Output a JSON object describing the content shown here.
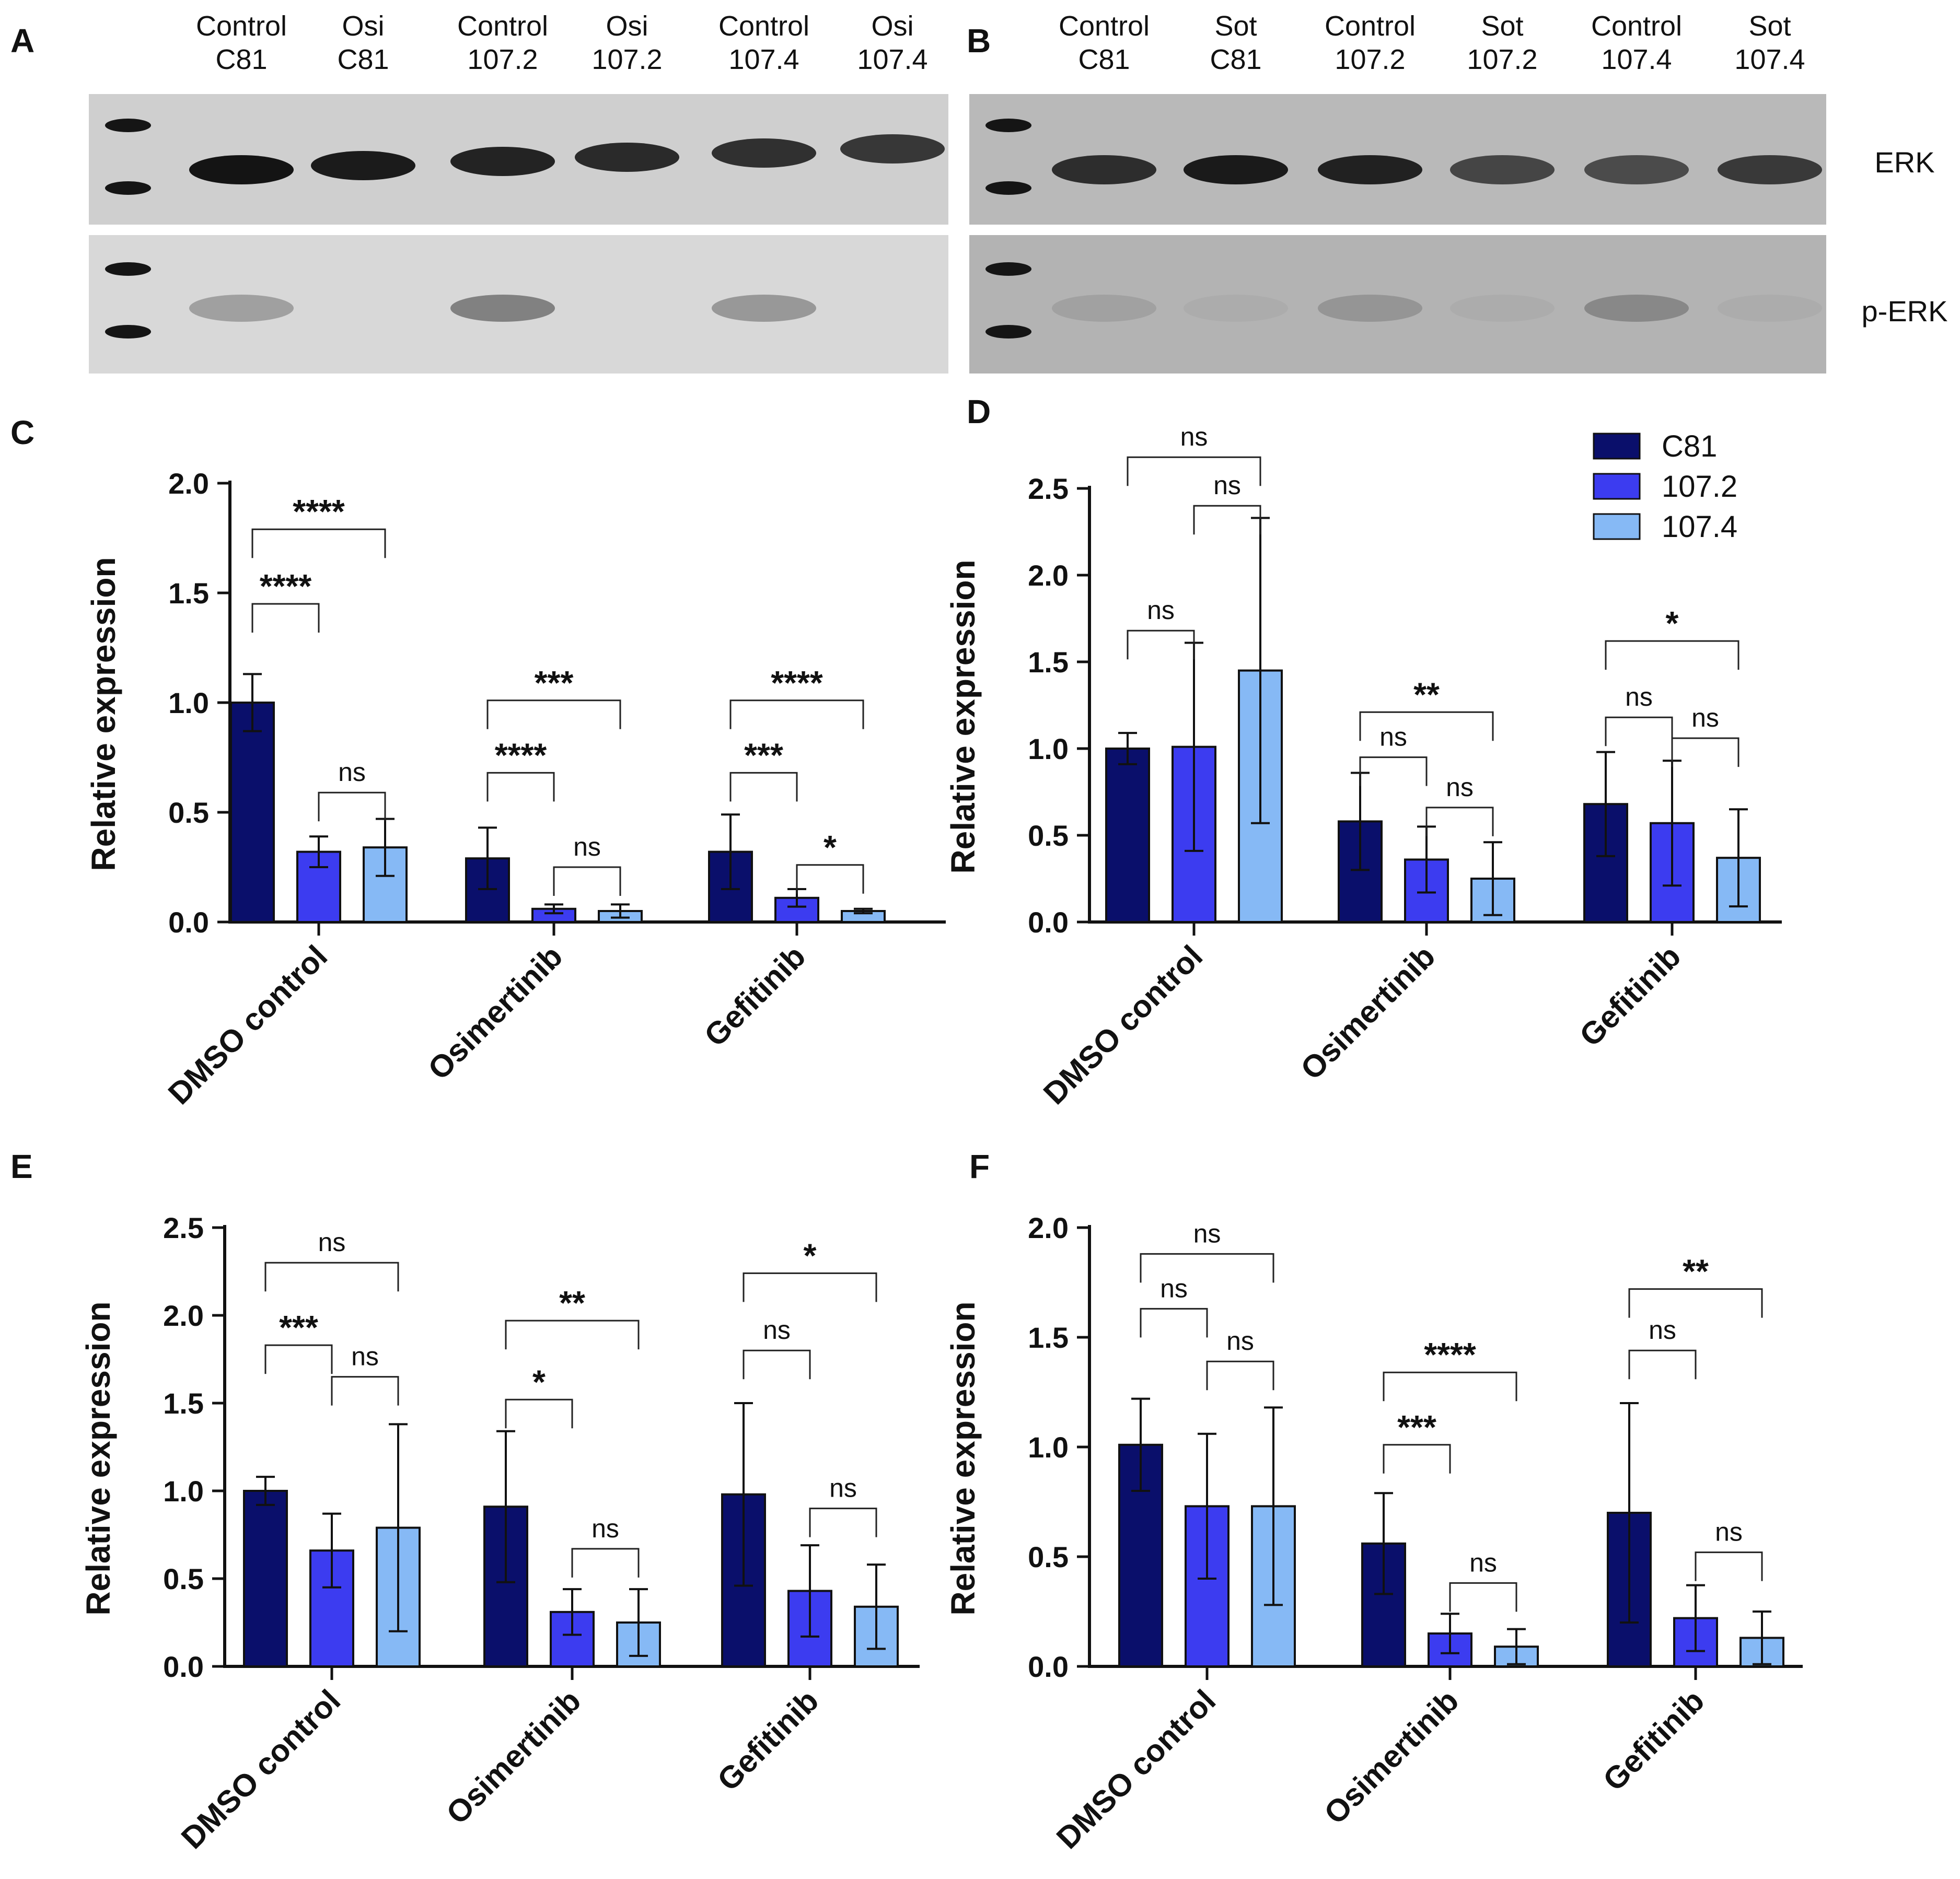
{
  "figure": {
    "colors": {
      "c81": "#0a0f6b",
      "c1072": "#3c3cf0",
      "c1074": "#86b9f5"
    },
    "legend": [
      {
        "label": "C81",
        "color": "#0a0f6b"
      },
      {
        "label": "107.2",
        "color": "#3c3cf0"
      },
      {
        "label": "107.4",
        "color": "#86b9f5"
      }
    ],
    "panel_letters": [
      "A",
      "B",
      "C",
      "D",
      "E",
      "F"
    ]
  },
  "blots": [
    {
      "letter": "A",
      "lanes": [
        {
          "top": "Control",
          "bottom": "C81"
        },
        {
          "top": "Osi",
          "bottom": "C81"
        },
        {
          "top": "Control",
          "bottom": "107.2"
        },
        {
          "top": "Osi",
          "bottom": "107.2"
        },
        {
          "top": "Control",
          "bottom": "107.4"
        },
        {
          "top": "Osi",
          "bottom": "107.4"
        }
      ],
      "erk_bands": [
        1.0,
        0.95,
        0.9,
        0.85,
        0.8,
        0.75
      ],
      "perk_bands": [
        0.35,
        0.0,
        0.55,
        0.0,
        0.4,
        0.0
      ]
    },
    {
      "letter": "B",
      "lanes": [
        {
          "top": "Control",
          "bottom": "C81"
        },
        {
          "top": "Sot",
          "bottom": "C81"
        },
        {
          "top": "Control",
          "bottom": "107.2"
        },
        {
          "top": "Sot",
          "bottom": "107.2"
        },
        {
          "top": "Control",
          "bottom": "107.4"
        },
        {
          "top": "Sot",
          "bottom": "107.4"
        }
      ],
      "erk_bands": [
        0.8,
        0.95,
        0.9,
        0.6,
        0.55,
        0.7
      ],
      "perk_bands": [
        0.15,
        0.05,
        0.25,
        0.05,
        0.35,
        0.05
      ]
    }
  ],
  "blot_labels": {
    "erk": "ERK",
    "perk": "p-ERK"
  },
  "chart_data": [
    {
      "letter": "C",
      "type": "bar",
      "ylabel": "Relative expression",
      "ylim": [
        0,
        2.0
      ],
      "yticks": [
        "0.0",
        "0.5",
        "1.0",
        "1.5",
        "2.0"
      ],
      "categories": [
        "DMSO control",
        "Osimertinib",
        "Gefitinib"
      ],
      "series": [
        {
          "name": "C81",
          "values": [
            1.0,
            0.29,
            0.32
          ],
          "errors": [
            0.13,
            0.14,
            0.17
          ]
        },
        {
          "name": "107.2",
          "values": [
            0.32,
            0.06,
            0.11
          ],
          "errors": [
            0.07,
            0.02,
            0.04
          ]
        },
        {
          "name": "107.4",
          "values": [
            0.34,
            0.05,
            0.05
          ],
          "errors": [
            0.13,
            0.03,
            0.01
          ]
        }
      ],
      "sig": [
        {
          "g": 0,
          "a": 0,
          "b": 1,
          "label": "****",
          "y": 1.45
        },
        {
          "g": 0,
          "a": 0,
          "b": 2,
          "label": "****",
          "y": 1.79
        },
        {
          "g": 0,
          "a": 1,
          "b": 2,
          "label": "ns",
          "y": 0.59
        },
        {
          "g": 1,
          "a": 0,
          "b": 1,
          "label": "****",
          "y": 0.68
        },
        {
          "g": 1,
          "a": 0,
          "b": 2,
          "label": "***",
          "y": 1.01
        },
        {
          "g": 1,
          "a": 1,
          "b": 2,
          "label": "ns",
          "y": 0.25
        },
        {
          "g": 2,
          "a": 0,
          "b": 1,
          "label": "***",
          "y": 0.68
        },
        {
          "g": 2,
          "a": 0,
          "b": 2,
          "label": "****",
          "y": 1.01
        },
        {
          "g": 2,
          "a": 1,
          "b": 2,
          "label": "*",
          "y": 0.26
        }
      ]
    },
    {
      "letter": "D",
      "type": "bar",
      "ylabel": "Relative expression",
      "ylim": [
        0,
        2.5
      ],
      "yticks": [
        "0.0",
        "0.5",
        "1.0",
        "1.5",
        "2.0",
        "2.5"
      ],
      "categories": [
        "DMSO control",
        "Osimertinib",
        "Gefitinib"
      ],
      "legend_position": "top-right",
      "series": [
        {
          "name": "C81",
          "values": [
            1.0,
            0.58,
            0.68
          ],
          "errors": [
            0.09,
            0.28,
            0.3
          ]
        },
        {
          "name": "107.2",
          "values": [
            1.01,
            0.36,
            0.57
          ],
          "errors": [
            0.6,
            0.19,
            0.36
          ]
        },
        {
          "name": "107.4",
          "values": [
            1.45,
            0.25,
            0.37
          ],
          "errors": [
            0.88,
            0.21,
            0.28
          ]
        }
      ],
      "sig": [
        {
          "g": 0,
          "a": 0,
          "b": 1,
          "label": "ns",
          "y": 1.68
        },
        {
          "g": 0,
          "a": 0,
          "b": 2,
          "label": "ns",
          "y": 2.68
        },
        {
          "g": 0,
          "a": 1,
          "b": 2,
          "label": "ns",
          "y": 2.4
        },
        {
          "g": 1,
          "a": 0,
          "b": 1,
          "label": "ns",
          "y": 0.95
        },
        {
          "g": 1,
          "a": 0,
          "b": 2,
          "label": "**",
          "y": 1.21
        },
        {
          "g": 1,
          "a": 1,
          "b": 2,
          "label": "ns",
          "y": 0.66
        },
        {
          "g": 2,
          "a": 0,
          "b": 1,
          "label": "ns",
          "y": 1.18
        },
        {
          "g": 2,
          "a": 0,
          "b": 2,
          "label": "*",
          "y": 1.62
        },
        {
          "g": 2,
          "a": 1,
          "b": 2,
          "label": "ns",
          "y": 1.06
        }
      ]
    },
    {
      "letter": "E",
      "type": "bar",
      "ylabel": "Relative expression",
      "ylim": [
        0,
        2.5
      ],
      "yticks": [
        "0.0",
        "0.5",
        "1.0",
        "1.5",
        "2.0",
        "2.5"
      ],
      "categories": [
        "DMSO control",
        "Osimertinib",
        "Gefitinib"
      ],
      "series": [
        {
          "name": "C81",
          "values": [
            1.0,
            0.91,
            0.98
          ],
          "errors": [
            0.08,
            0.43,
            0.52
          ]
        },
        {
          "name": "107.2",
          "values": [
            0.66,
            0.31,
            0.43
          ],
          "errors": [
            0.21,
            0.13,
            0.26
          ]
        },
        {
          "name": "107.4",
          "values": [
            0.79,
            0.25,
            0.34
          ],
          "errors": [
            0.59,
            0.19,
            0.24
          ]
        }
      ],
      "sig": [
        {
          "g": 0,
          "a": 0,
          "b": 1,
          "label": "***",
          "y": 1.83
        },
        {
          "g": 0,
          "a": 0,
          "b": 2,
          "label": "ns",
          "y": 2.3
        },
        {
          "g": 0,
          "a": 1,
          "b": 2,
          "label": "ns",
          "y": 1.65
        },
        {
          "g": 1,
          "a": 0,
          "b": 1,
          "label": "*",
          "y": 1.52
        },
        {
          "g": 1,
          "a": 0,
          "b": 2,
          "label": "**",
          "y": 1.97
        },
        {
          "g": 1,
          "a": 1,
          "b": 2,
          "label": "ns",
          "y": 0.67
        },
        {
          "g": 2,
          "a": 0,
          "b": 1,
          "label": "ns",
          "y": 1.8
        },
        {
          "g": 2,
          "a": 0,
          "b": 2,
          "label": "*",
          "y": 2.24
        },
        {
          "g": 2,
          "a": 1,
          "b": 2,
          "label": "ns",
          "y": 0.9
        }
      ]
    },
    {
      "letter": "F",
      "type": "bar",
      "ylabel": "Relative expression",
      "ylim": [
        0,
        2.0
      ],
      "yticks": [
        "0.0",
        "0.5",
        "1.0",
        "1.5",
        "2.0"
      ],
      "categories": [
        "DMSO control",
        "Osimertinib",
        "Gefitinib"
      ],
      "series": [
        {
          "name": "C81",
          "values": [
            1.01,
            0.56,
            0.7
          ],
          "errors": [
            0.21,
            0.23,
            0.5
          ]
        },
        {
          "name": "107.2",
          "values": [
            0.73,
            0.15,
            0.22
          ],
          "errors": [
            0.33,
            0.09,
            0.15
          ]
        },
        {
          "name": "107.4",
          "values": [
            0.73,
            0.09,
            0.13
          ],
          "errors": [
            0.45,
            0.08,
            0.12
          ]
        }
      ],
      "sig": [
        {
          "g": 0,
          "a": 0,
          "b": 1,
          "label": "ns",
          "y": 1.63
        },
        {
          "g": 0,
          "a": 0,
          "b": 2,
          "label": "ns",
          "y": 1.88
        },
        {
          "g": 0,
          "a": 1,
          "b": 2,
          "label": "ns",
          "y": 1.39
        },
        {
          "g": 1,
          "a": 0,
          "b": 1,
          "label": "***",
          "y": 1.01
        },
        {
          "g": 1,
          "a": 0,
          "b": 2,
          "label": "****",
          "y": 1.34
        },
        {
          "g": 1,
          "a": 1,
          "b": 2,
          "label": "ns",
          "y": 0.38
        },
        {
          "g": 2,
          "a": 0,
          "b": 1,
          "label": "ns",
          "y": 1.44
        },
        {
          "g": 2,
          "a": 0,
          "b": 2,
          "label": "**",
          "y": 1.72
        },
        {
          "g": 2,
          "a": 1,
          "b": 2,
          "label": "ns",
          "y": 0.52
        }
      ]
    }
  ]
}
